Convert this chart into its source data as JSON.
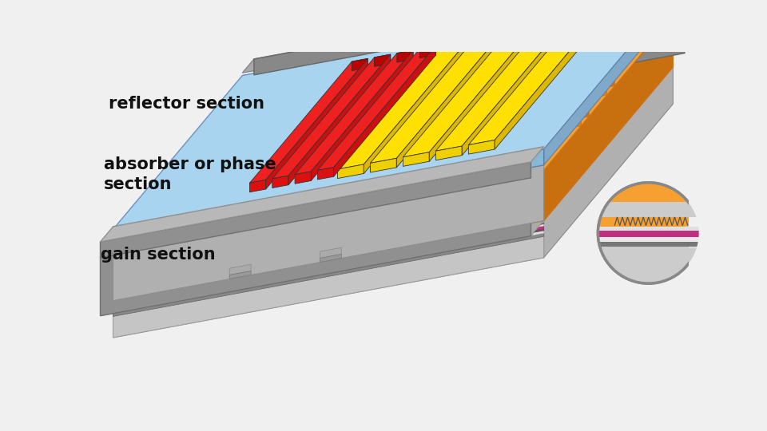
{
  "background_color": "#ffffff",
  "labels": {
    "reflector": "reflector section",
    "absorber": "absorber or phase\nsection",
    "gain": "gain section"
  },
  "colors": {
    "orange": "#F5A030",
    "orange_dark": "#D07010",
    "orange_side": "#E08018",
    "light_blue": "#A8D4F0",
    "blue_front": "#88B8D8",
    "gray1": "#C8C8C8",
    "gray2": "#AAAAAA",
    "gray3": "#989898",
    "gray4": "#888888",
    "gray5": "#B8B8B8",
    "gray6": "#D0D0D0",
    "gray_rail": "#9A9A9A",
    "gray_rail_top": "#BBBBBB",
    "yellow": "#FFE000",
    "yellow_dark": "#D4B800",
    "red": "#DD2020",
    "red_dark": "#AA0808",
    "purple": "#C03080",
    "white": "#F0F0F0",
    "outline": "#555555"
  }
}
